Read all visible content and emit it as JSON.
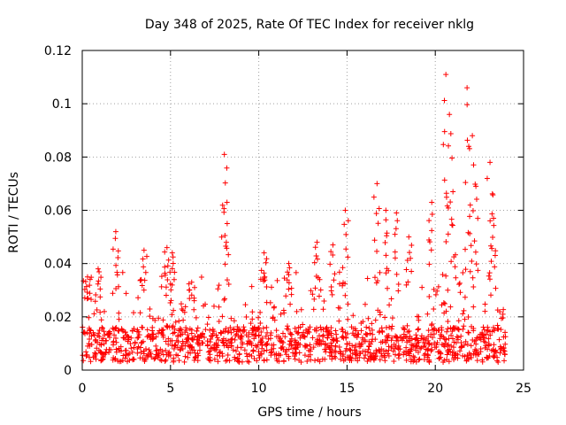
{
  "chart_data": {
    "type": "scatter",
    "title": "Day 348 of 2025, Rate Of TEC Index for receiver nklg",
    "xlabel": "GPS time / hours",
    "ylabel": "ROTI / TECUs",
    "xlim": [
      0,
      25
    ],
    "ylim": [
      0,
      0.12
    ],
    "x_ticks": [
      0,
      5,
      10,
      15,
      20,
      25
    ],
    "x_tick_labels": [
      "0",
      "5",
      "10",
      "15",
      "20",
      "25"
    ],
    "y_ticks": [
      0,
      0.02,
      0.04,
      0.06,
      0.08,
      0.1,
      0.12
    ],
    "y_tick_labels": [
      "0",
      "0.02",
      "0.04",
      "0.06",
      "0.08",
      "0.1",
      "0.12"
    ],
    "grid": true,
    "marker": "+",
    "color": "#ff0000",
    "series": [
      {
        "name": "ROTI",
        "x_range_hours": [
          0,
          24
        ],
        "typical_band": [
          0.003,
          0.025
        ],
        "peaks": [
          {
            "x": 0.3,
            "y": 0.035
          },
          {
            "x": 0.9,
            "y": 0.038
          },
          {
            "x": 1.9,
            "y": 0.052
          },
          {
            "x": 3.5,
            "y": 0.045
          },
          {
            "x": 4.8,
            "y": 0.046
          },
          {
            "x": 5.1,
            "y": 0.044
          },
          {
            "x": 6.2,
            "y": 0.033
          },
          {
            "x": 8.05,
            "y": 0.081
          },
          {
            "x": 8.2,
            "y": 0.063
          },
          {
            "x": 10.3,
            "y": 0.044
          },
          {
            "x": 11.7,
            "y": 0.04
          },
          {
            "x": 13.3,
            "y": 0.048
          },
          {
            "x": 14.2,
            "y": 0.047
          },
          {
            "x": 14.9,
            "y": 0.06
          },
          {
            "x": 16.7,
            "y": 0.07
          },
          {
            "x": 17.2,
            "y": 0.06
          },
          {
            "x": 17.8,
            "y": 0.059
          },
          {
            "x": 18.5,
            "y": 0.05
          },
          {
            "x": 19.8,
            "y": 0.063
          },
          {
            "x": 20.6,
            "y": 0.111
          },
          {
            "x": 20.8,
            "y": 0.096
          },
          {
            "x": 21.0,
            "y": 0.067
          },
          {
            "x": 21.8,
            "y": 0.106
          },
          {
            "x": 22.1,
            "y": 0.088
          },
          {
            "x": 22.3,
            "y": 0.069
          },
          {
            "x": 23.1,
            "y": 0.078
          },
          {
            "x": 23.3,
            "y": 0.057
          }
        ]
      }
    ]
  }
}
